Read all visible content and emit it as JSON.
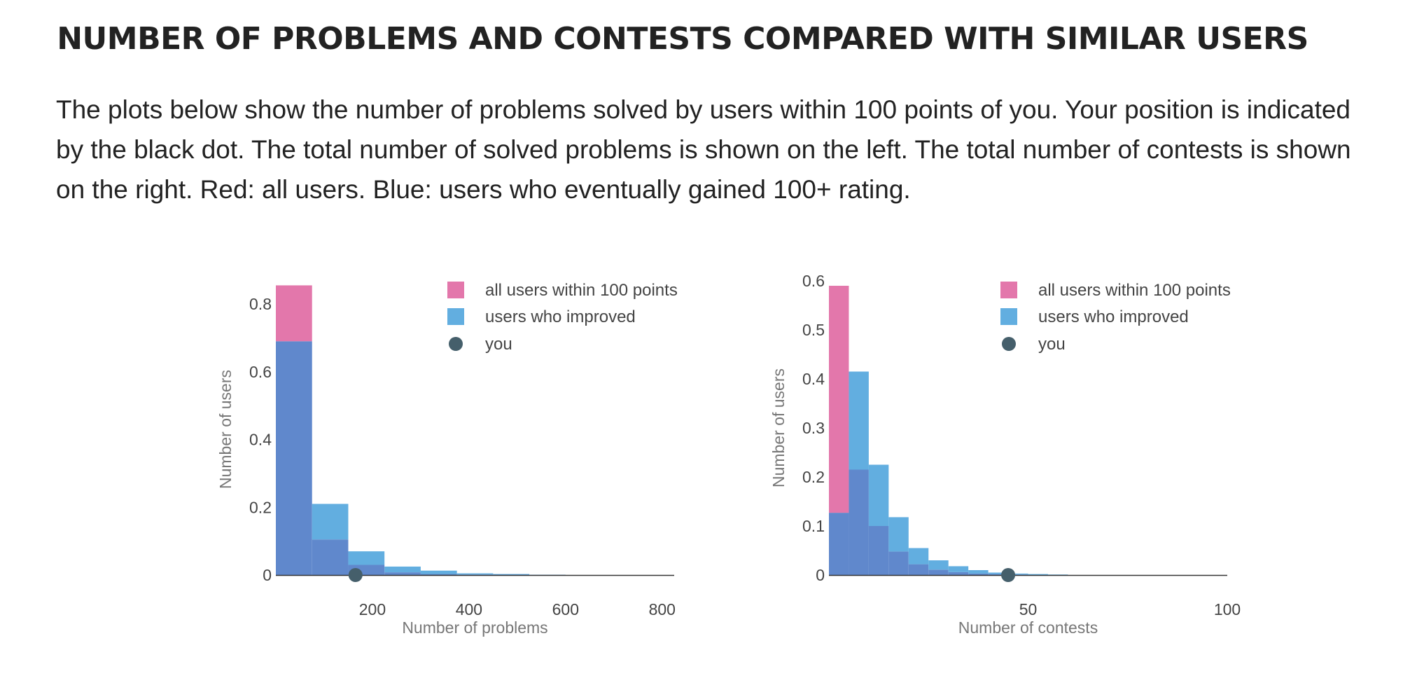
{
  "header": {
    "title": "NUMBER OF PROBLEMS AND CONTESTS COMPARED WITH SIMILAR USERS",
    "description": "The plots below show the number of problems solved by users within 100 points of you. Your position is indicated by the black dot. The total number of solved problems is shown on the left. The total number of contests is shown on the right. Red: all users. Blue: users who eventually gained 100+ rating."
  },
  "colors": {
    "all_users": "#e377ab",
    "improved": "#62aee0",
    "overlap": "#6088cc",
    "you": "#455f6b"
  },
  "chart_data": [
    {
      "type": "bar",
      "xlabel": "Number of problems",
      "ylabel": "Number of users",
      "xlim": [
        0,
        825
      ],
      "ylim": [
        0,
        0.86
      ],
      "xticks": [
        200,
        400,
        600,
        800
      ],
      "yticks": [
        0,
        0.2,
        0.4,
        0.6,
        0.8
      ],
      "ytick_labels": [
        "0",
        "0.2",
        "0.4",
        "0.6",
        "0.8"
      ],
      "bin_edges": [
        0,
        75,
        150,
        225,
        300,
        375,
        450,
        525,
        600,
        675,
        750,
        825
      ],
      "series": [
        {
          "name": "all users within 100 points",
          "values": [
            0.855,
            0.105,
            0.03,
            0.008,
            0.003,
            0.0015,
            0.001,
            0.0005,
            0,
            0,
            0
          ]
        },
        {
          "name": "users who improved",
          "values": [
            0.69,
            0.21,
            0.07,
            0.025,
            0.013,
            0.005,
            0.003,
            0.001,
            0,
            0,
            0
          ]
        }
      ],
      "you": {
        "name": "you",
        "x": 165,
        "y": 0
      },
      "legend": "top-right"
    },
    {
      "type": "bar",
      "xlabel": "Number of contests",
      "ylabel": "Number of users",
      "xlim": [
        0,
        100
      ],
      "ylim": [
        0,
        0.6
      ],
      "xticks": [
        50,
        100
      ],
      "yticks": [
        0,
        0.1,
        0.2,
        0.3,
        0.4,
        0.5,
        0.6
      ],
      "ytick_labels": [
        "0",
        "0.1",
        "0.2",
        "0.3",
        "0.4",
        "0.5",
        "0.6"
      ],
      "bin_edges": [
        0,
        5,
        10,
        15,
        20,
        25,
        30,
        35,
        40,
        45,
        50,
        55,
        60,
        65,
        70,
        75,
        80,
        85,
        90,
        95,
        100
      ],
      "series": [
        {
          "name": "all users within 100 points",
          "values": [
            0.59,
            0.215,
            0.1,
            0.048,
            0.022,
            0.011,
            0.006,
            0.003,
            0.002,
            0.001,
            0,
            0,
            0,
            0,
            0,
            0,
            0,
            0,
            0,
            0
          ]
        },
        {
          "name": "users who improved",
          "values": [
            0.127,
            0.415,
            0.225,
            0.118,
            0.055,
            0.03,
            0.018,
            0.01,
            0.005,
            0.003,
            0.002,
            0.001,
            0,
            0,
            0,
            0,
            0,
            0,
            0,
            0
          ]
        }
      ],
      "you": {
        "name": "you",
        "x": 45,
        "y": 0
      },
      "legend": "top-right"
    }
  ]
}
